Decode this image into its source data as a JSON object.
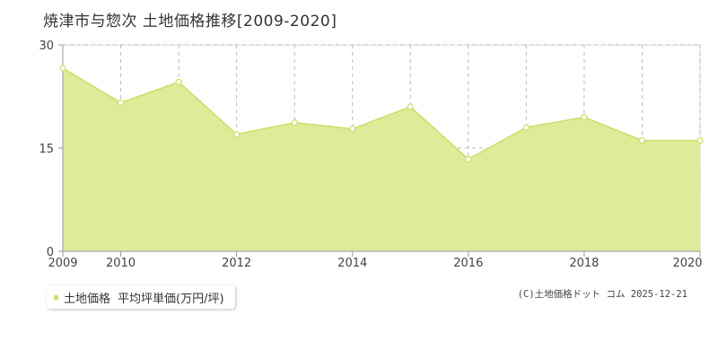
{
  "header": {
    "title": "焼津市与惣次  土地価格推移[2009-2020]"
  },
  "legend": {
    "series_label": "土地価格",
    "unit_label": "平均坪単価(万円/坪)"
  },
  "footer": {
    "copyright": "(C)土地価格ドット コム  2025-12-21"
  },
  "colors": {
    "fill": "#dcec98",
    "line": "#c8e06a",
    "marker_fill": "#ffffff",
    "grid": "#bbbbbb",
    "axis": "#999999"
  },
  "chart_data": {
    "type": "area",
    "title": "焼津市与惣次  土地価格推移[2009-2020]",
    "xlabel": "",
    "ylabel": "",
    "x": [
      2009,
      2010,
      2011,
      2012,
      2013,
      2014,
      2015,
      2016,
      2017,
      2018,
      2019,
      2020
    ],
    "series": [
      {
        "name": "土地価格",
        "values": [
          26.6,
          21.6,
          24.6,
          17.0,
          18.7,
          17.8,
          21.0,
          13.4,
          18.0,
          19.5,
          16.1,
          16.1
        ]
      }
    ],
    "xlim": [
      2009,
      2020
    ],
    "ylim": [
      0,
      30
    ],
    "yticks": [
      0,
      15,
      30
    ],
    "xtick_labels": [
      "2009",
      "2010",
      "2012",
      "2014",
      "2016",
      "2018",
      "2020"
    ],
    "grid": true
  }
}
